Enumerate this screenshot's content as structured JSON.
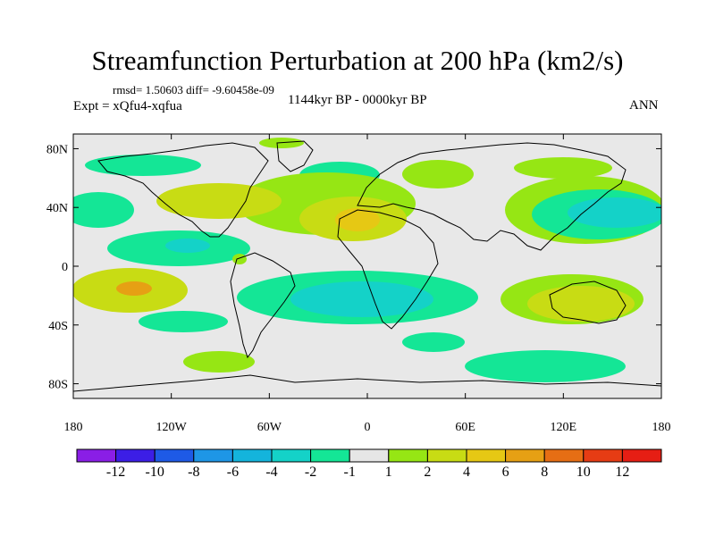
{
  "header": {
    "title": "Streamfunction Perturbation at 200 hPa (km2/s)",
    "stats": "rmsd= 1.50603 diff= -9.60458e-09",
    "experiment": "Expt = xQfu4-xqfua",
    "period": "1144kyr BP - 0000kyr BP",
    "season": "ANN"
  },
  "map": {
    "lat_ticks": [
      "80N",
      "40N",
      "0",
      "40S",
      "80S"
    ],
    "lon_ticks": [
      "180",
      "120W",
      "60W",
      "0",
      "60E",
      "120E",
      "180"
    ],
    "fill_anomalies": [
      {
        "lon": 150,
        "lat": 35,
        "value": -6
      },
      {
        "lon": 60,
        "lat": 55,
        "value": 2
      },
      {
        "lon": -20,
        "lat": 50,
        "value": -2
      },
      {
        "lon": -100,
        "lat": 15,
        "value": -4
      },
      {
        "lon": -10,
        "lat": 30,
        "value": 6
      },
      {
        "lon": -60,
        "lat": 40,
        "value": 4
      },
      {
        "lon": -150,
        "lat": -15,
        "value": 8
      },
      {
        "lon": -20,
        "lat": -25,
        "value": -4
      },
      {
        "lon": 140,
        "lat": -25,
        "value": 4
      },
      {
        "lon": 110,
        "lat": -60,
        "value": -2
      },
      {
        "lon": -90,
        "lat": -60,
        "value": 2
      }
    ]
  },
  "colorbar": {
    "labels": [
      "-12",
      "-10",
      "-8",
      "-6",
      "-4",
      "-2",
      "-1",
      "1",
      "2",
      "4",
      "6",
      "8",
      "10",
      "12"
    ],
    "colors": [
      "#8a1ee6",
      "#3c1ee6",
      "#1e5ae6",
      "#1e96e6",
      "#14b4dc",
      "#14d2c8",
      "#14e696",
      "#e6e6e6",
      "#96e614",
      "#c8dc14",
      "#e6c814",
      "#e6a014",
      "#e66e14",
      "#e63c14",
      "#e61e14"
    ]
  }
}
